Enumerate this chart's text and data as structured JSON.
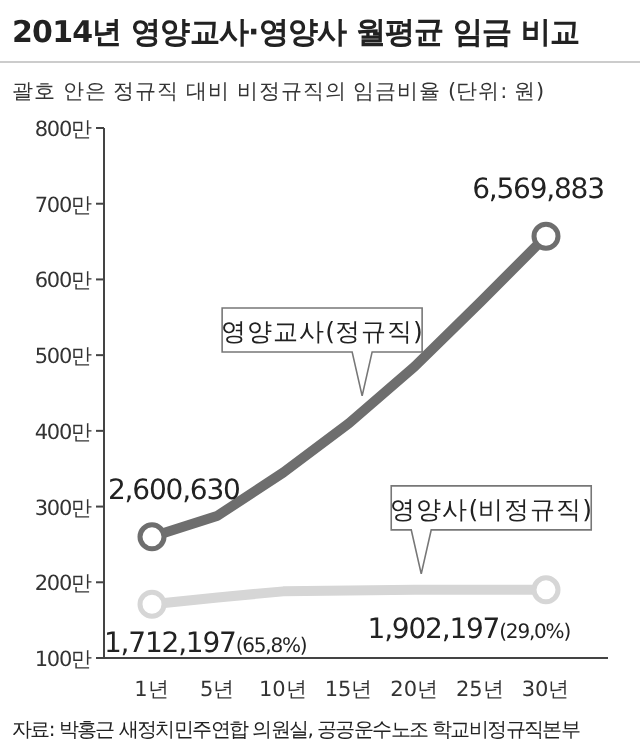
{
  "chart_data": {
    "type": "line",
    "title": "2014년 영양교사·영양사 월평균 임금 비교",
    "subtitle": "괄호 안은 정규직 대비 비정규직의 임금비율 (단위: 원)",
    "categories": [
      "1년",
      "5년",
      "10년",
      "15년",
      "20년",
      "25년",
      "30년"
    ],
    "series": [
      {
        "name": "영양교사(정규직)",
        "color": "#6e6e6e",
        "values": [
          260,
          288,
          345,
          410,
          485,
          570,
          657
        ]
      },
      {
        "name": "영양사(비정규직)",
        "color": "#d6d6d6",
        "values": [
          171,
          180,
          188,
          189,
          190,
          190,
          190
        ]
      }
    ],
    "ylim": [
      100,
      800
    ],
    "yticks": [
      {
        "value": 100,
        "label": "100만"
      },
      {
        "value": 200,
        "label": "200만"
      },
      {
        "value": 300,
        "label": "300만"
      },
      {
        "value": 400,
        "label": "400만"
      },
      {
        "value": 500,
        "label": "500만"
      },
      {
        "value": 600,
        "label": "600만"
      },
      {
        "value": 700,
        "label": "700만"
      },
      {
        "value": 800,
        "label": "800만"
      }
    ],
    "grid": false,
    "line_style": "solid",
    "annotations": [
      {
        "text": "2,600,630",
        "x": "1년",
        "y": 260
      },
      {
        "text": "6,569,883",
        "x": "30년",
        "y": 657
      },
      {
        "text": "1,712,197(65,8%)",
        "x": "1년",
        "y": 171
      },
      {
        "text": "1,902,197(29,0%)",
        "x": "30년",
        "y": 190
      },
      "자료: 박홍근 새정치민주연합 의원실, 공공운수노조 학교비정규직본부"
    ]
  }
}
